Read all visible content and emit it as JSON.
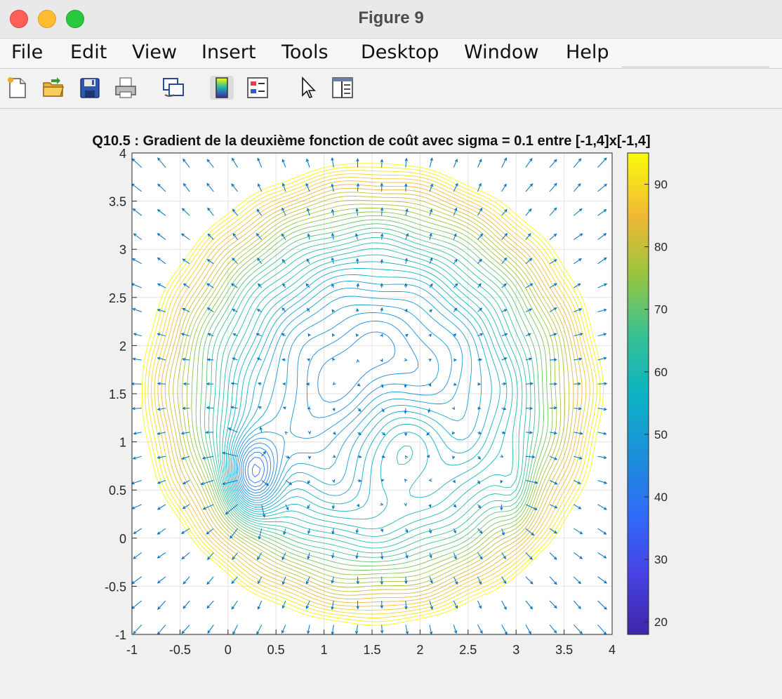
{
  "window": {
    "title": "Figure 9"
  },
  "menu": [
    "File",
    "Edit",
    "View",
    "Insert",
    "Tools",
    "Desktop",
    "Window",
    "Help"
  ],
  "toolbar": [
    {
      "name": "new-figure-icon"
    },
    {
      "name": "open-file-icon"
    },
    {
      "name": "save-icon"
    },
    {
      "name": "print-icon"
    },
    {
      "name": "link-plot-icon"
    },
    {
      "name": "colorbar-icon"
    },
    {
      "name": "legend-icon"
    },
    {
      "name": "pointer-icon"
    },
    {
      "name": "property-inspector-icon"
    }
  ],
  "chart_data": {
    "type": "contour",
    "title": "Q10.5 : Gradient de la deuxième fonction de coût avec sigma = 0.1 entre [-1,4]x[-1,4]",
    "xlabel": "",
    "ylabel": "",
    "xlim": [
      -1,
      4
    ],
    "ylim": [
      -1,
      4
    ],
    "x_ticks": [
      "-1",
      "-0.5",
      "0",
      "0.5",
      "1",
      "1.5",
      "2",
      "2.5",
      "3",
      "3.5",
      "4"
    ],
    "y_ticks": [
      "-1",
      "-0.5",
      "0",
      "0.5",
      "1",
      "1.5",
      "2",
      "2.5",
      "3",
      "3.5",
      "4"
    ],
    "grid": true,
    "colorbar": {
      "ticks": [
        "20",
        "30",
        "40",
        "50",
        "60",
        "70",
        "80",
        "90"
      ],
      "range": [
        18,
        95
      ],
      "colormap": "parula"
    },
    "features": {
      "global_minimum": {
        "x": 0.25,
        "y": 0.65,
        "value": 18
      },
      "local_minimum": {
        "x": 1.75,
        "y": 1.0,
        "value": 55
      },
      "secondary_valley": {
        "x": 3.0,
        "y": 0.5
      }
    }
  }
}
